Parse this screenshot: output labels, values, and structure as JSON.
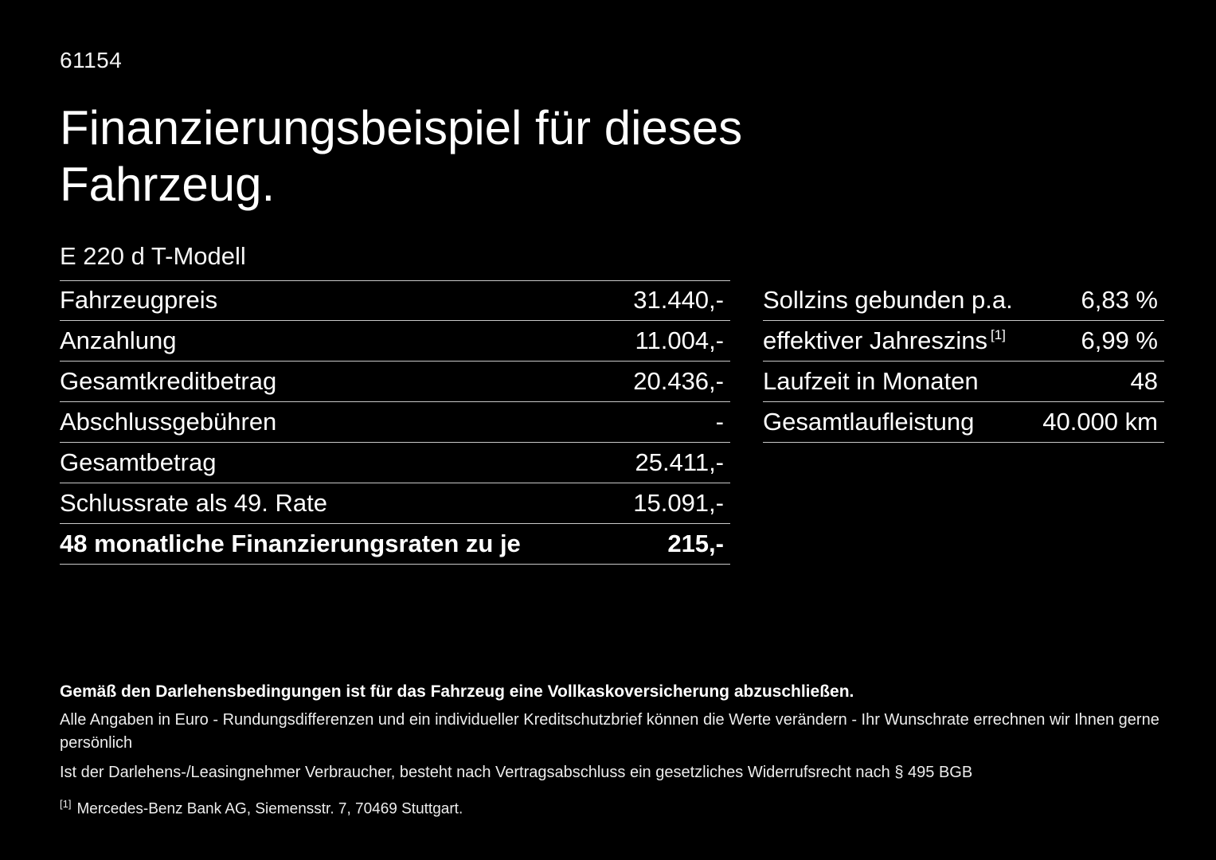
{
  "page": {
    "ref_number": "61154",
    "title_line1": "Finanzierungsbeispiel für dieses",
    "title_line2": "Fahrzeug.",
    "model": "E 220 d T-Modell"
  },
  "left_table": {
    "rows": [
      {
        "label": "Fahrzeugpreis",
        "value": "31.440,-"
      },
      {
        "label": "Anzahlung",
        "value": "11.004,-"
      },
      {
        "label": "Gesamtkreditbetrag",
        "value": "20.436,-"
      },
      {
        "label": "Abschlussgebühren",
        "value": "-"
      },
      {
        "label": "Gesamtbetrag",
        "value": "25.411,-"
      },
      {
        "label": "Schlussrate als 49. Rate",
        "value": "15.091,-"
      },
      {
        "label": "48 monatliche Finanzierungsraten zu je",
        "value": "215,-"
      }
    ]
  },
  "right_table": {
    "rows": [
      {
        "label": "Sollzins gebunden p.a.",
        "sup": "",
        "value": "6,83 %"
      },
      {
        "label": "effektiver Jahreszins",
        "sup": "[1]",
        "value": "6,99 %"
      },
      {
        "label": "Laufzeit in Monaten",
        "sup": "",
        "value": "48"
      },
      {
        "label": "Gesamtlaufleistung",
        "sup": "",
        "value": "40.000 km"
      }
    ]
  },
  "footer": {
    "bold_note": "Gemäß den Darlehensbedingungen ist für das Fahrzeug eine Vollkaskoversicherung abzuschließen.",
    "note1": "Alle Angaben in Euro - Rundungsdifferenzen und ein individueller Kreditschutzbrief können die Werte verändern - Ihr Wunschrate errechnen wir Ihnen gerne persönlich",
    "note2": "Ist der Darlehens-/Leasingnehmer Verbraucher, besteht nach Vertragsabschluss ein gesetzliches Widerrufsrecht nach § 495 BGB",
    "footnote_marker": "[1]",
    "footnote_text": "Mercedes-Benz Bank AG, Siemensstr. 7, 70469 Stuttgart."
  },
  "colors": {
    "background": "#000000",
    "text": "#ffffff",
    "divider": "#c9c9c9"
  }
}
